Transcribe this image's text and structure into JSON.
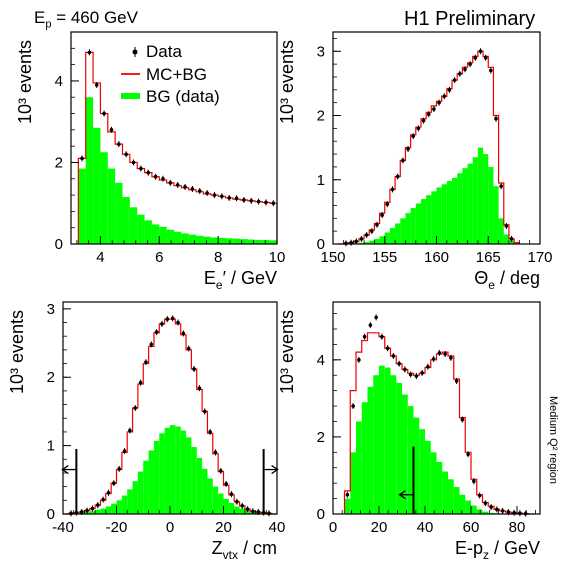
{
  "header": {
    "beam_prefix": "E",
    "beam_sub": "p",
    "beam_value": "= 460 GeV",
    "preliminary": "H1 Preliminary",
    "region_note": "Medium Q² region"
  },
  "legend": {
    "data": "Data",
    "mc": "MC+BG",
    "bg": "BG (data)"
  },
  "colors": {
    "mc_line": "#ee0000",
    "bg_fill": "#00ff00",
    "data_marker": "#000000",
    "axes": "#000000"
  },
  "chart_data": [
    {
      "id": "Ee",
      "type": "bar",
      "xlabel": "E_e′ / GeV",
      "ylabel": "10³ events",
      "xlim": [
        3,
        10
      ],
      "ylim": [
        0,
        5.2
      ],
      "xticks": [
        4,
        6,
        8,
        10
      ],
      "yticks": [
        0,
        2,
        4
      ],
      "bin_edges": [
        3.25,
        3.5,
        3.75,
        4.0,
        4.25,
        4.5,
        4.75,
        5.0,
        5.25,
        5.5,
        5.75,
        6.0,
        6.25,
        6.5,
        6.75,
        7.0,
        7.25,
        7.5,
        7.75,
        8.0,
        8.25,
        8.5,
        8.75,
        9.0,
        9.25,
        9.5,
        9.75,
        10.0
      ],
      "bg": [
        1.85,
        3.6,
        2.85,
        2.25,
        1.85,
        1.5,
        1.15,
        0.9,
        0.72,
        0.58,
        0.48,
        0.42,
        0.35,
        0.3,
        0.26,
        0.23,
        0.2,
        0.18,
        0.16,
        0.15,
        0.14,
        0.13,
        0.12,
        0.11,
        0.1,
        0.1,
        0.09
      ],
      "mc": [
        2.1,
        4.7,
        3.95,
        3.2,
        2.75,
        2.45,
        2.2,
        2.0,
        1.85,
        1.75,
        1.65,
        1.57,
        1.5,
        1.43,
        1.38,
        1.33,
        1.28,
        1.23,
        1.2,
        1.17,
        1.13,
        1.1,
        1.08,
        1.06,
        1.04,
        1.02,
        1.0
      ],
      "data_x": [
        3.375,
        3.625,
        3.875,
        4.125,
        4.375,
        4.625,
        4.875,
        5.125,
        5.375,
        5.625,
        5.875,
        6.125,
        6.375,
        6.625,
        6.875,
        7.125,
        7.375,
        7.625,
        7.875,
        8.125,
        8.375,
        8.625,
        8.875,
        9.125,
        9.375,
        9.625,
        9.875
      ],
      "data_y": [
        2.1,
        4.7,
        3.9,
        3.2,
        2.8,
        2.45,
        2.2,
        2.0,
        1.85,
        1.75,
        1.65,
        1.6,
        1.5,
        1.45,
        1.4,
        1.35,
        1.3,
        1.25,
        1.2,
        1.17,
        1.13,
        1.12,
        1.08,
        1.06,
        1.04,
        1.02,
        1.0
      ]
    },
    {
      "id": "Theta",
      "type": "bar",
      "xlabel": "Θ_e / deg",
      "ylabel": "10³ events",
      "xlim": [
        150,
        170
      ],
      "ylim": [
        0,
        3.3
      ],
      "xticks": [
        150,
        155,
        160,
        165,
        170
      ],
      "yticks": [
        0,
        1,
        2,
        3
      ],
      "bin_edges": [
        150.5,
        151,
        151.5,
        152,
        152.5,
        153,
        153.5,
        154,
        154.5,
        155,
        155.5,
        156,
        156.5,
        157,
        157.5,
        158,
        158.5,
        159,
        159.5,
        160,
        160.5,
        161,
        161.5,
        162,
        162.5,
        163,
        163.5,
        164,
        164.5,
        165,
        165.5,
        166,
        166.5,
        167,
        167.5,
        168
      ],
      "bg": [
        0.0,
        0.0,
        0.01,
        0.01,
        0.02,
        0.03,
        0.05,
        0.08,
        0.12,
        0.18,
        0.25,
        0.32,
        0.4,
        0.48,
        0.56,
        0.63,
        0.7,
        0.76,
        0.82,
        0.88,
        0.93,
        0.98,
        1.03,
        1.1,
        1.18,
        1.25,
        1.35,
        1.5,
        1.4,
        1.2,
        0.9,
        0.4,
        0.15,
        0.05,
        0.01
      ],
      "mc": [
        0.0,
        0.01,
        0.02,
        0.04,
        0.08,
        0.14,
        0.22,
        0.32,
        0.48,
        0.65,
        0.85,
        1.05,
        1.3,
        1.5,
        1.7,
        1.82,
        1.95,
        2.05,
        2.15,
        2.22,
        2.3,
        2.42,
        2.55,
        2.65,
        2.75,
        2.82,
        2.92,
        3.0,
        2.92,
        2.75,
        2.0,
        0.95,
        0.3,
        0.08,
        0.02
      ],
      "data_x": [
        150.75,
        151.25,
        151.75,
        152.25,
        152.75,
        153.25,
        153.75,
        154.25,
        154.75,
        155.25,
        155.75,
        156.25,
        156.75,
        157.25,
        157.75,
        158.25,
        158.75,
        159.25,
        159.75,
        160.25,
        160.75,
        161.25,
        161.75,
        162.25,
        162.75,
        163.25,
        163.75,
        164.25,
        164.75,
        165.25,
        165.75,
        166.25,
        166.75,
        167.25
      ],
      "data_y": [
        0.0,
        0.01,
        0.02,
        0.04,
        0.08,
        0.14,
        0.2,
        0.3,
        0.45,
        0.62,
        0.85,
        1.05,
        1.3,
        1.48,
        1.68,
        1.8,
        1.92,
        2.02,
        2.1,
        2.2,
        2.3,
        2.4,
        2.55,
        2.65,
        2.72,
        2.8,
        2.9,
        3.0,
        2.9,
        2.7,
        1.95,
        0.9,
        0.28,
        0.08
      ]
    },
    {
      "id": "Zvtx",
      "type": "bar",
      "xlabel": "Z_vtx / cm",
      "ylabel": "10³ events",
      "xlim": [
        -40,
        40
      ],
      "ylim": [
        0,
        3.1
      ],
      "xticks": [
        -40,
        -20,
        0,
        20,
        40
      ],
      "yticks": [
        0,
        1,
        2,
        3
      ],
      "bin_edges": [
        -40,
        -38,
        -36,
        -34,
        -32,
        -30,
        -28,
        -26,
        -24,
        -22,
        -20,
        -18,
        -16,
        -14,
        -12,
        -10,
        -8,
        -6,
        -4,
        -2,
        0,
        2,
        4,
        6,
        8,
        10,
        12,
        14,
        16,
        18,
        20,
        22,
        24,
        26,
        28,
        30,
        32,
        34,
        36,
        38,
        40
      ],
      "bg": [
        0.0,
        0.01,
        0.01,
        0.02,
        0.03,
        0.04,
        0.06,
        0.08,
        0.11,
        0.15,
        0.2,
        0.27,
        0.36,
        0.48,
        0.62,
        0.78,
        0.93,
        1.07,
        1.18,
        1.26,
        1.3,
        1.28,
        1.22,
        1.12,
        0.98,
        0.82,
        0.66,
        0.52,
        0.4,
        0.3,
        0.22,
        0.16,
        0.11,
        0.08,
        0.05,
        0.04,
        0.03,
        0.02,
        0.01,
        0.0
      ],
      "mc": [
        0.0,
        0.01,
        0.02,
        0.03,
        0.05,
        0.08,
        0.13,
        0.2,
        0.3,
        0.45,
        0.65,
        0.9,
        1.2,
        1.55,
        1.9,
        2.2,
        2.45,
        2.65,
        2.78,
        2.85,
        2.85,
        2.78,
        2.62,
        2.4,
        2.12,
        1.82,
        1.5,
        1.18,
        0.88,
        0.62,
        0.42,
        0.28,
        0.18,
        0.12,
        0.07,
        0.04,
        0.03,
        0.02,
        0.01,
        0.0
      ],
      "data_x": [
        -39,
        -37,
        -35,
        -33,
        -31,
        -29,
        -27,
        -25,
        -23,
        -21,
        -19,
        -17,
        -15,
        -13,
        -11,
        -9,
        -7,
        -5,
        -3,
        -1,
        1,
        3,
        5,
        7,
        9,
        11,
        13,
        15,
        17,
        19,
        21,
        23,
        25,
        27,
        29,
        31,
        33,
        35,
        37,
        39
      ],
      "data_y": [
        0.0,
        0.01,
        0.02,
        0.03,
        0.05,
        0.08,
        0.13,
        0.21,
        0.31,
        0.45,
        0.66,
        0.92,
        1.22,
        1.55,
        1.92,
        2.22,
        2.48,
        2.66,
        2.78,
        2.85,
        2.86,
        2.8,
        2.64,
        2.42,
        2.12,
        1.84,
        1.5,
        1.2,
        0.9,
        0.63,
        0.44,
        0.29,
        0.18,
        0.12,
        0.07,
        0.04,
        0.03,
        0.02,
        0.01,
        0.0
      ],
      "cuts": [
        {
          "x": -35,
          "dir": "left",
          "y_top": 0.95,
          "y_arrow": 0.65
        },
        {
          "x": 35,
          "dir": "right",
          "y_top": 0.95,
          "y_arrow": 0.65
        }
      ]
    },
    {
      "id": "Epz",
      "type": "bar",
      "xlabel": "E-p_z / GeV",
      "ylabel": "10³ events",
      "xlim": [
        0,
        90
      ],
      "ylim": [
        0,
        5.5
      ],
      "xticks": [
        0,
        20,
        40,
        60,
        80
      ],
      "yticks": [
        0,
        2,
        4
      ],
      "bin_edges": [
        5,
        7.5,
        10,
        12.5,
        15,
        17.5,
        20,
        22.5,
        25,
        27.5,
        30,
        32.5,
        35,
        37.5,
        40,
        42.5,
        45,
        47.5,
        50,
        52.5,
        55,
        57.5,
        60,
        62.5,
        65,
        67.5,
        70,
        72.5,
        75,
        77.5,
        80,
        82.5,
        85,
        87.5
      ],
      "bg": [
        0.4,
        1.6,
        2.4,
        2.9,
        3.3,
        3.6,
        3.85,
        3.8,
        3.6,
        3.4,
        3.1,
        2.8,
        2.5,
        2.2,
        1.9,
        1.6,
        1.35,
        1.1,
        0.9,
        0.7,
        0.5,
        0.35,
        0.22,
        0.12,
        0.06,
        0.03,
        0.02,
        0.01,
        0.0,
        0.0,
        0.0,
        0.0,
        0.0
      ],
      "mc": [
        0.6,
        3.2,
        4.2,
        4.5,
        4.7,
        4.7,
        4.6,
        4.3,
        4.1,
        3.9,
        3.75,
        3.65,
        3.6,
        3.65,
        3.8,
        4.0,
        4.15,
        4.2,
        4.1,
        3.5,
        2.5,
        1.6,
        0.9,
        0.5,
        0.3,
        0.2,
        0.12,
        0.08,
        0.05,
        0.03,
        0.02,
        0.01,
        0.0
      ],
      "data_x": [
        6.25,
        8.75,
        11.25,
        13.75,
        16.25,
        18.75,
        21.25,
        23.75,
        26.25,
        28.75,
        31.25,
        33.75,
        36.25,
        38.75,
        41.25,
        43.75,
        46.25,
        48.75,
        51.25,
        53.75,
        56.25,
        58.75,
        61.25,
        63.75,
        66.25,
        68.75,
        71.25,
        73.75,
        76.25,
        78.75,
        81.25,
        83.75,
        86.25
      ],
      "data_y": [
        0.5,
        2.8,
        4.0,
        4.6,
        4.9,
        5.1,
        4.6,
        4.3,
        4.1,
        3.9,
        3.75,
        3.62,
        3.58,
        3.66,
        3.82,
        4.02,
        4.18,
        4.15,
        4.05,
        3.45,
        2.45,
        1.55,
        0.85,
        0.48,
        0.28,
        0.18,
        0.12,
        0.08,
        0.05,
        0.03,
        0.02,
        0.01,
        0.0
      ],
      "cuts": [
        {
          "x": 35,
          "dir": "left",
          "y_top": 1.75,
          "y_arrow": 0.5
        }
      ]
    }
  ]
}
